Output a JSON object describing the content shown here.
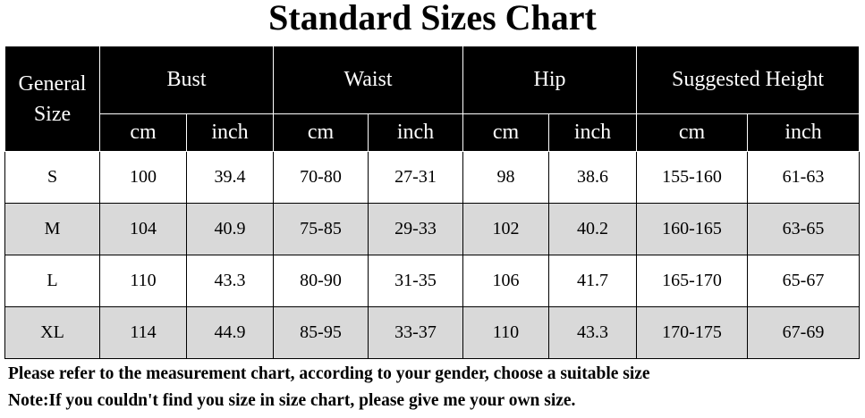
{
  "title": "Standard Sizes Chart",
  "colors": {
    "header_bg": "#000000",
    "header_text": "#ffffff",
    "alt_row_bg": "#d9d9d9"
  },
  "header": {
    "general_size": "General Size",
    "groups": [
      "Bust",
      "Waist",
      "Hip",
      "Suggested Height"
    ],
    "units": [
      "cm",
      "inch",
      "cm",
      "inch",
      "cm",
      "inch",
      "cm",
      "inch"
    ]
  },
  "rows": [
    [
      "S",
      "100",
      "39.4",
      "70-80",
      "27-31",
      "98",
      "38.6",
      "155-160",
      "61-63"
    ],
    [
      "M",
      "104",
      "40.9",
      "75-85",
      "29-33",
      "102",
      "40.2",
      "160-165",
      "63-65"
    ],
    [
      "L",
      "110",
      "43.3",
      "80-90",
      "31-35",
      "106",
      "41.7",
      "165-170",
      "65-67"
    ],
    [
      "XL",
      "114",
      "44.9",
      "85-95",
      "33-37",
      "110",
      "43.3",
      "170-175",
      "67-69"
    ]
  ],
  "notes": [
    "Please refer to the measurement chart, according to your gender, choose a suitable size",
    "Note:If you couldn't find you size in size chart, please give me your own size."
  ]
}
